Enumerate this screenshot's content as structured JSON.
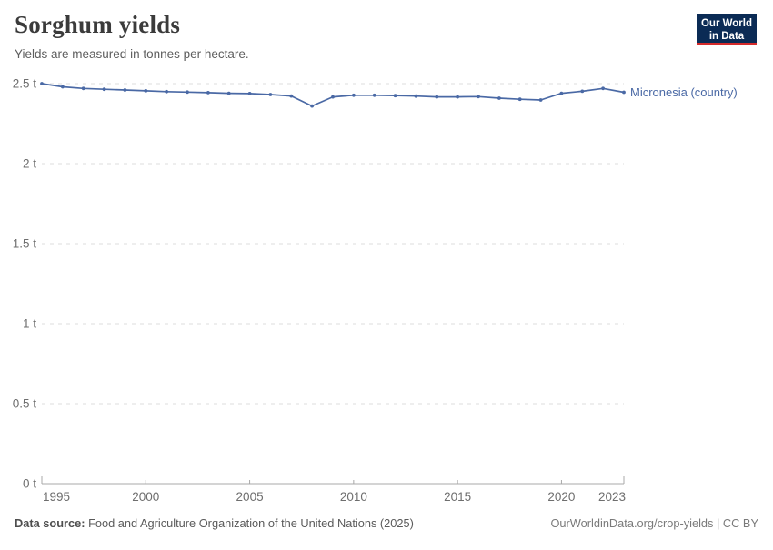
{
  "header": {
    "title": "Sorghum yields",
    "subtitle": "Yields are measured in tonnes per hectare.",
    "logo": {
      "line1": "Our World",
      "line2": "in Data",
      "bg_color": "#0b2b55",
      "bar_color": "#d52b2b"
    }
  },
  "chart_data": {
    "type": "line",
    "title": "Sorghum yields",
    "subtitle": "Yields are measured in tonnes per hectare.",
    "xlabel": "",
    "ylabel": "tonnes per hectare",
    "x": [
      1995,
      1996,
      1997,
      1998,
      1999,
      2000,
      2001,
      2002,
      2003,
      2004,
      2005,
      2006,
      2007,
      2008,
      2009,
      2010,
      2011,
      2012,
      2013,
      2014,
      2015,
      2016,
      2017,
      2018,
      2019,
      2020,
      2021,
      2022,
      2023
    ],
    "series": [
      {
        "name": "Micronesia (country)",
        "color": "#4a69a5",
        "values": [
          2.5,
          2.48,
          2.47,
          2.465,
          2.46,
          2.455,
          2.45,
          2.447,
          2.444,
          2.44,
          2.438,
          2.432,
          2.423,
          2.36,
          2.417,
          2.427,
          2.427,
          2.425,
          2.422,
          2.417,
          2.417,
          2.419,
          2.409,
          2.402,
          2.398,
          2.44,
          2.452,
          2.47,
          2.446
        ]
      }
    ],
    "xlim": [
      1995,
      2023
    ],
    "ylim": [
      0,
      2.5
    ],
    "xticks": [
      1995,
      2000,
      2005,
      2010,
      2015,
      2020,
      2023
    ],
    "yticks": [
      0,
      0.5,
      1,
      1.5,
      2,
      2.5
    ],
    "ytick_format": "{v} t",
    "grid": "horizontal-dashed",
    "gridline_color": "#dcdcdc",
    "axis_color": "#a8a8a8",
    "tick_label_color": "#6e6e6e",
    "legend_position": "end-of-line-label"
  },
  "footer": {
    "source_label": "Data source:",
    "source_text": " Food and Agriculture Organization of the United Nations (2025)",
    "credit": "OurWorldinData.org/crop-yields | CC BY"
  }
}
